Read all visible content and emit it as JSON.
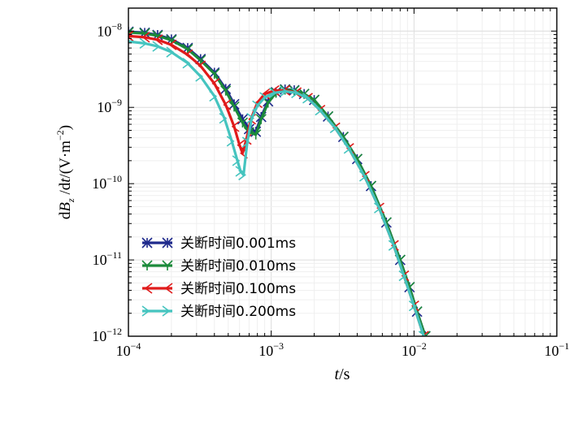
{
  "chart_data": {
    "type": "line",
    "xscale": "log",
    "yscale": "log",
    "xlim": [
      0.0001,
      0.1
    ],
    "ylim": [
      1e-12,
      2e-08
    ],
    "grid": true,
    "legend_position": "lower-left",
    "xlabel": {
      "italic": "t",
      "rest": "/s"
    },
    "ylabel": {
      "d": "d",
      "B": "B",
      "z": "z",
      "mid": " /d",
      "t": "t",
      "unit": "/(V·m",
      "exp": "−2",
      "close": ")"
    },
    "x_ticks": [
      {
        "value": 0.0001,
        "base": "10",
        "exp": "−4"
      },
      {
        "value": 0.001,
        "base": "10",
        "exp": "−3"
      },
      {
        "value": 0.01,
        "base": "10",
        "exp": "−2"
      },
      {
        "value": 0.1,
        "base": "10",
        "exp": "−1"
      }
    ],
    "y_ticks": [
      {
        "value": 1e-12,
        "base": "10",
        "exp": "−12"
      },
      {
        "value": 1e-11,
        "base": "10",
        "exp": "−11"
      },
      {
        "value": 1e-10,
        "base": "10",
        "exp": "−10"
      },
      {
        "value": 1e-09,
        "base": "10",
        "exp": "−9"
      },
      {
        "value": 1e-08,
        "base": "10",
        "exp": "−8"
      }
    ],
    "series": [
      {
        "name": "关断时间0.001ms",
        "color": "#1f2a8c",
        "x": [
          0.0001,
          0.00013,
          0.00016,
          0.0002,
          0.00026,
          0.00032,
          0.0004,
          0.00048,
          0.00055,
          0.00063,
          0.0007,
          0.00078,
          0.00085,
          0.00095,
          0.00108,
          0.00125,
          0.00145,
          0.0017,
          0.002,
          0.0025,
          0.0032,
          0.004,
          0.005,
          0.0064,
          0.008,
          0.0093,
          0.0105,
          0.012
        ],
        "y": [
          9.8e-09,
          9.5e-09,
          8.9e-09,
          7.8e-09,
          6e-09,
          4.3e-09,
          2.85e-09,
          1.75e-09,
          1.1e-09,
          7e-10,
          5.2e-10,
          4.8e-10,
          7.5e-10,
          1.2e-09,
          1.58e-09,
          1.72e-09,
          1.68e-09,
          1.5e-09,
          1.25e-09,
          7.6e-10,
          4.1e-10,
          2.1e-10,
          9.3e-11,
          3.1e-11,
          1e-11,
          4.4e-12,
          2.1e-12,
          1e-12
        ]
      },
      {
        "name": "关断时间0.010ms",
        "color": "#1b8a3a",
        "x": [
          0.0001,
          0.00013,
          0.00016,
          0.0002,
          0.00026,
          0.00032,
          0.0004,
          0.00048,
          0.00055,
          0.00063,
          0.0007,
          0.00078,
          0.00085,
          0.00095,
          0.00108,
          0.00125,
          0.00145,
          0.0017,
          0.002,
          0.0025,
          0.0032,
          0.004,
          0.005,
          0.0064,
          0.008,
          0.0093,
          0.0105,
          0.012
        ],
        "y": [
          9.6e-09,
          9.3e-09,
          8.7e-09,
          7.6e-09,
          5.8e-09,
          4.15e-09,
          2.75e-09,
          1.65e-09,
          1.02e-09,
          6.3e-10,
          4.7e-10,
          4.4e-10,
          7e-10,
          1.15e-09,
          1.55e-09,
          1.7e-09,
          1.66e-09,
          1.5e-09,
          1.25e-09,
          7.6e-10,
          4.1e-10,
          2.1e-10,
          9.3e-11,
          3.1e-11,
          1e-11,
          4.4e-12,
          2.1e-12,
          1e-12
        ]
      },
      {
        "name": "关断时间0.100ms",
        "color": "#e01b1b",
        "x": [
          0.0001,
          0.00013,
          0.00016,
          0.0002,
          0.00026,
          0.00032,
          0.0004,
          0.00048,
          0.00055,
          0.0006,
          0.00063,
          0.00067,
          0.00072,
          0.0008,
          0.0009,
          0.00105,
          0.00125,
          0.0015,
          0.0018,
          0.0022,
          0.0028,
          0.0035,
          0.0045,
          0.0057,
          0.0072,
          0.0085,
          0.01,
          0.0117
        ],
        "y": [
          8.6e-09,
          8.3e-09,
          7.7e-09,
          6.6e-09,
          4.9e-09,
          3.5e-09,
          2.05e-09,
          1.08e-09,
          5.6e-10,
          3.2e-10,
          2.5e-10,
          3.8e-10,
          7e-10,
          1.15e-09,
          1.5e-09,
          1.66e-09,
          1.67e-09,
          1.56e-09,
          1.32e-09,
          9.2e-10,
          5.4e-10,
          2.9e-10,
          1.25e-10,
          4.8e-11,
          1.55e-11,
          6.2e-12,
          2.5e-12,
          1e-12
        ]
      },
      {
        "name": "关断时间0.200ms",
        "color": "#45c4bf",
        "x": [
          0.0001,
          0.00013,
          0.00016,
          0.0002,
          0.00026,
          0.00032,
          0.0004,
          0.00047,
          0.00053,
          0.00058,
          0.00061,
          0.00064,
          0.00068,
          0.00073,
          0.0008,
          0.0009,
          0.00105,
          0.00125,
          0.0015,
          0.0018,
          0.0022,
          0.0028,
          0.0035,
          0.0045,
          0.0057,
          0.0072,
          0.0085,
          0.01,
          0.0117
        ],
        "y": [
          7.3e-09,
          6.9e-09,
          6.3e-09,
          5.3e-09,
          3.8e-09,
          2.55e-09,
          1.4e-09,
          7.2e-10,
          3.6e-10,
          2e-10,
          1.45e-10,
          1.3e-10,
          3.5e-10,
          7.2e-10,
          1.05e-09,
          1.35e-09,
          1.55e-09,
          1.62e-09,
          1.55e-09,
          1.32e-09,
          9.2e-10,
          5.4e-10,
          2.9e-10,
          1.25e-10,
          4.8e-11,
          1.55e-11,
          6.2e-12,
          2.5e-12,
          1e-12
        ]
      }
    ]
  }
}
